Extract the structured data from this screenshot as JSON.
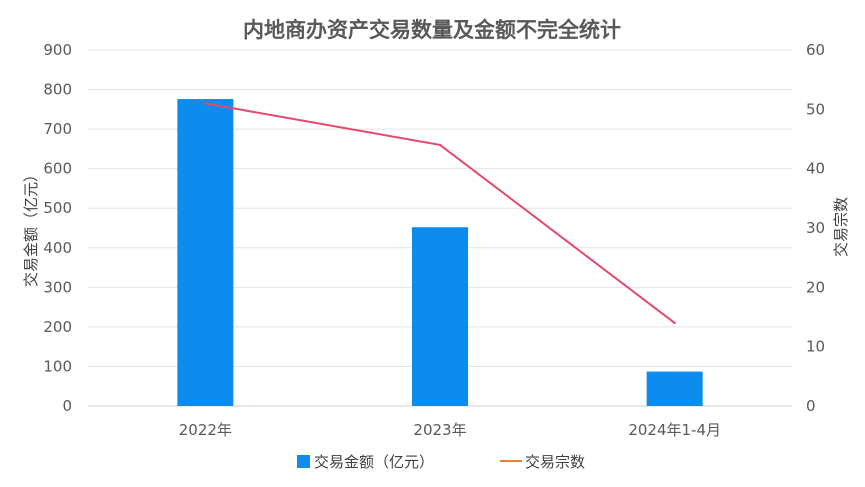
{
  "chart_data": {
    "type": "bar",
    "title": "内地商办资产交易数量及金额不完全统计",
    "categories": [
      "2022年",
      "2023年",
      "2024年1-4月"
    ],
    "series": [
      {
        "name": "交易金额（亿元）",
        "type": "bar",
        "axis": "left",
        "color": "#0D8CF0",
        "values": [
          776,
          452,
          87
        ]
      },
      {
        "name": "交易宗数",
        "type": "line",
        "axis": "right",
        "color": "#E8476D",
        "legend_color": "#ED7D31",
        "values": [
          51,
          44,
          14
        ]
      }
    ],
    "ylabel": "交易金额（亿元）",
    "y2label": "交易宗数",
    "ylim": [
      0,
      900
    ],
    "y2lim": [
      0,
      60
    ],
    "yticks": [
      "0",
      "100",
      "200",
      "300",
      "400",
      "500",
      "600",
      "700",
      "800",
      "900"
    ],
    "y2ticks": [
      "0",
      "10",
      "20",
      "30",
      "40",
      "50",
      "60"
    ],
    "grid": true,
    "legend_position": "bottom"
  }
}
